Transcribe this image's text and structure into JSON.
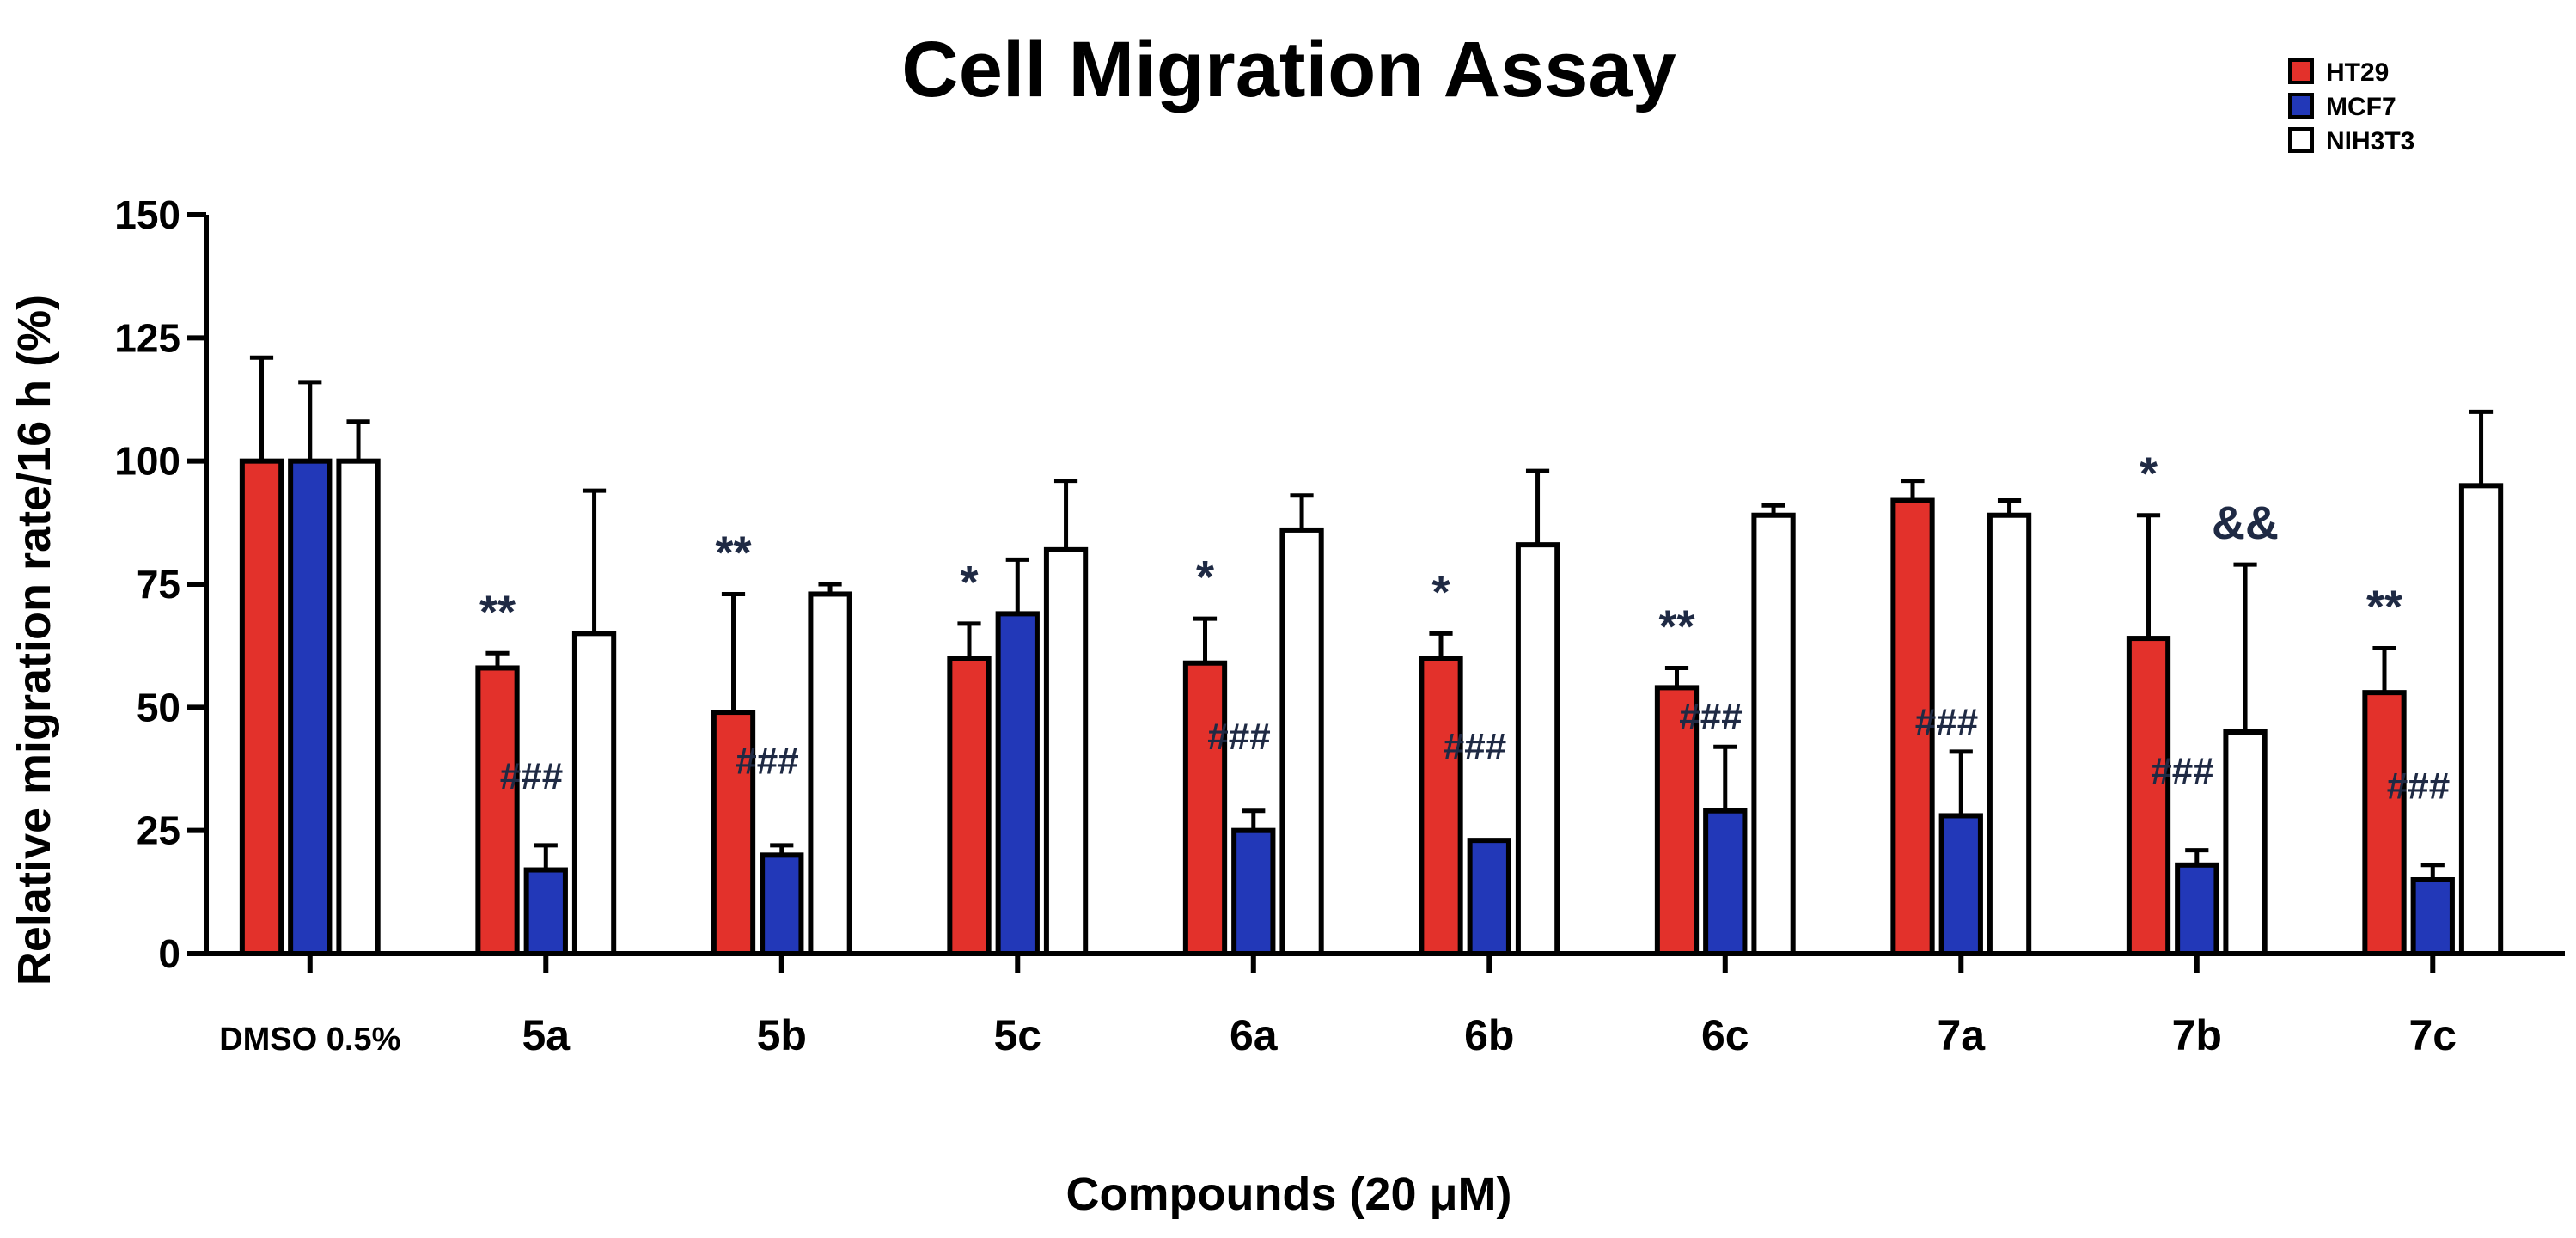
{
  "chart_data": {
    "type": "bar",
    "title": "Cell Migration Assay",
    "xlabel": "Compounds (20 μM)",
    "ylabel": "Relative migration rate/16 h (%)",
    "ylim": [
      0,
      150
    ],
    "yticks": [
      "0",
      "25",
      "50",
      "75",
      "100",
      "125",
      "150"
    ],
    "categories": [
      "DMSO 0.5%",
      "5a",
      "5b",
      "5c",
      "6a",
      "6b",
      "6c",
      "7a",
      "7b",
      "7c"
    ],
    "series": [
      {
        "name": "HT29",
        "color": "#e3312b",
        "values": [
          100,
          58,
          49,
          60,
          59,
          60,
          54,
          92,
          64,
          53
        ],
        "errors": [
          21,
          3,
          24,
          7,
          9,
          5,
          4,
          4,
          25,
          9
        ]
      },
      {
        "name": "MCF7",
        "color": "#2238b8",
        "values": [
          100,
          17,
          20,
          69,
          25,
          23,
          29,
          28,
          18,
          15
        ],
        "errors": [
          16,
          5,
          2,
          11,
          4,
          0,
          13,
          13,
          3,
          3
        ]
      },
      {
        "name": "NIH3T3",
        "color": "#ffffff",
        "values": [
          100,
          65,
          73,
          82,
          86,
          83,
          89,
          89,
          45,
          95
        ],
        "errors": [
          8,
          29,
          2,
          14,
          7,
          15,
          2,
          3,
          34,
          15
        ]
      }
    ],
    "annotations": [
      {
        "category": "5a",
        "series": "HT29",
        "text": "**"
      },
      {
        "category": "5a",
        "series": "MCF7",
        "text": "###"
      },
      {
        "category": "5b",
        "series": "HT29",
        "text": "**"
      },
      {
        "category": "5b",
        "series": "MCF7",
        "text": "###"
      },
      {
        "category": "5c",
        "series": "HT29",
        "text": "*"
      },
      {
        "category": "6a",
        "series": "HT29",
        "text": "*"
      },
      {
        "category": "6a",
        "series": "MCF7",
        "text": "###"
      },
      {
        "category": "6b",
        "series": "HT29",
        "text": "*"
      },
      {
        "category": "6b",
        "series": "MCF7",
        "text": "###"
      },
      {
        "category": "6c",
        "series": "HT29",
        "text": "**"
      },
      {
        "category": "6c",
        "series": "MCF7",
        "text": "###"
      },
      {
        "category": "7a",
        "series": "MCF7",
        "text": "###"
      },
      {
        "category": "7b",
        "series": "HT29",
        "text": "*"
      },
      {
        "category": "7b",
        "series": "MCF7",
        "text": "###"
      },
      {
        "category": "7b",
        "series": "NIH3T3",
        "text": "&&"
      },
      {
        "category": "7c",
        "series": "HT29",
        "text": "**"
      },
      {
        "category": "7c",
        "series": "MCF7",
        "text": "###"
      }
    ],
    "legend": {
      "position": "top-right",
      "entries": [
        "HT29",
        "MCF7",
        "NIH3T3"
      ]
    },
    "grid": false
  }
}
